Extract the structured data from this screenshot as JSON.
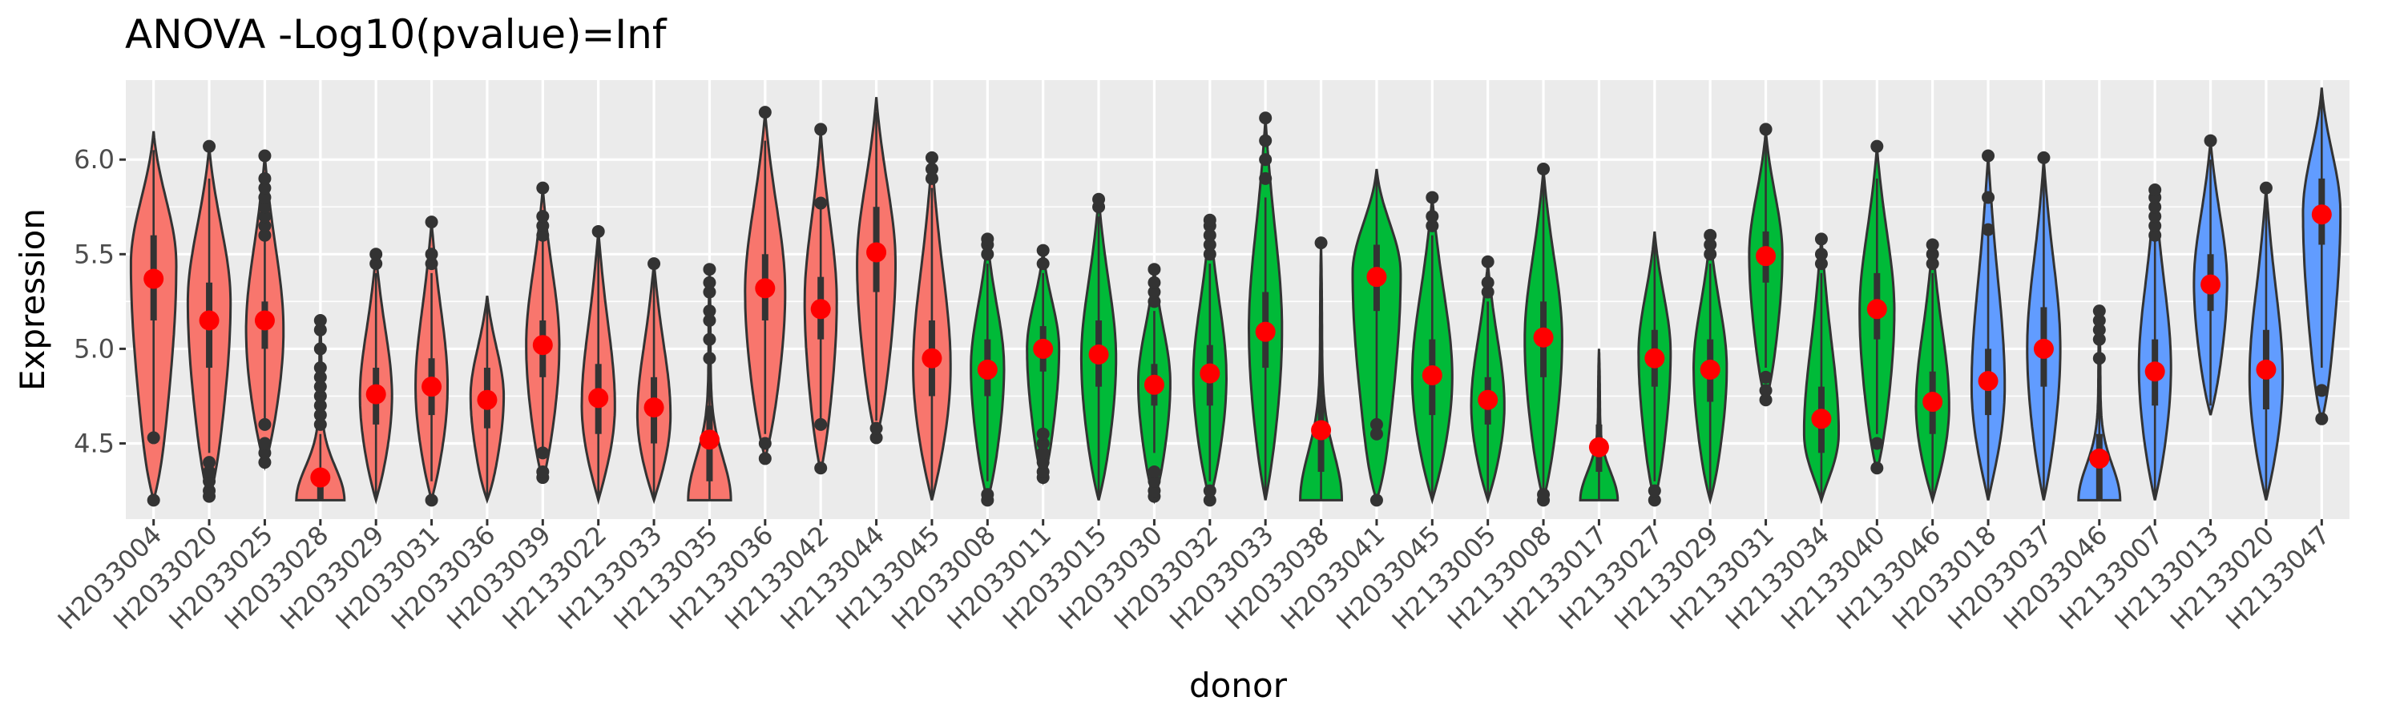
{
  "chart_data": {
    "type": "violin",
    "title": "ANOVA -Log10(pvalue)=Inf",
    "xlabel": "donor",
    "ylabel": "Expression",
    "ylim": [
      4.1,
      6.42
    ],
    "yticks": [
      "4.5",
      "5.0",
      "5.5",
      "6.0"
    ],
    "ytick_values": [
      4.5,
      5.0,
      5.5,
      6.0
    ],
    "grid": true,
    "legend": "none",
    "group_colors": {
      "a": "#F8766D",
      "b": "#00BA38",
      "c": "#619CFF"
    },
    "mean_color": "#FF0000",
    "categories": [
      "H2033004",
      "H2033020",
      "H2033025",
      "H2033028",
      "H2033029",
      "H2033031",
      "H2033036",
      "H2033039",
      "H2133022",
      "H2133033",
      "H2133035",
      "H2133036",
      "H2133042",
      "H2133044",
      "H2133045",
      "H2033008",
      "H2033011",
      "H2033015",
      "H2033030",
      "H2033032",
      "H2033033",
      "H2033038",
      "H2033041",
      "H2033045",
      "H2133005",
      "H2133008",
      "H2133017",
      "H2133027",
      "H2133029",
      "H2133031",
      "H2133034",
      "H2133040",
      "H2133046",
      "H2033018",
      "H2033037",
      "H2033046",
      "H2133007",
      "H2133013",
      "H2133020",
      "H2133047"
    ],
    "violins": [
      {
        "donor": "H2033004",
        "group": "a",
        "min": 4.2,
        "max": 6.15,
        "mean": 5.37,
        "mode": 5.45,
        "width": 0.85,
        "q1": 5.15,
        "med": 5.4,
        "q3": 5.6,
        "wlo": 4.55,
        "whi": 6.05,
        "outliers": [
          4.2,
          4.53
        ]
      },
      {
        "donor": "H2033020",
        "group": "a",
        "min": 4.2,
        "max": 6.07,
        "mean": 5.15,
        "mode": 5.25,
        "width": 0.8,
        "q1": 4.9,
        "med": 5.15,
        "q3": 5.35,
        "wlo": 4.45,
        "whi": 5.9,
        "outliers": [
          4.22,
          4.25,
          4.3,
          4.35,
          4.4,
          6.07
        ]
      },
      {
        "donor": "H2033025",
        "group": "a",
        "min": 4.38,
        "max": 6.02,
        "mean": 5.15,
        "mode": 5.1,
        "width": 0.7,
        "q1": 5.0,
        "med": 5.15,
        "q3": 5.25,
        "wlo": 4.62,
        "whi": 5.6,
        "outliers": [
          4.4,
          4.45,
          4.5,
          4.6,
          5.6,
          5.65,
          5.7,
          5.75,
          5.8,
          5.85,
          5.9,
          6.02
        ]
      },
      {
        "donor": "H2033028",
        "group": "a",
        "min": 4.2,
        "max": 5.15,
        "mean": 4.32,
        "mode": 4.22,
        "width": 0.9,
        "shape": "floor",
        "q1": 4.2,
        "med": 4.22,
        "q3": 4.33,
        "wlo": 4.2,
        "whi": 4.55,
        "outliers": [
          4.6,
          4.65,
          4.7,
          4.75,
          4.8,
          4.85,
          4.9,
          5.0,
          5.1,
          5.15
        ]
      },
      {
        "donor": "H2033029",
        "group": "a",
        "min": 4.2,
        "max": 5.5,
        "mean": 4.76,
        "mode": 4.75,
        "width": 0.6,
        "q1": 4.6,
        "med": 4.75,
        "q3": 4.9,
        "wlo": 4.2,
        "whi": 5.4,
        "outliers": [
          5.45,
          5.5
        ]
      },
      {
        "donor": "H2033031",
        "group": "a",
        "min": 4.2,
        "max": 5.67,
        "mean": 4.8,
        "mode": 4.8,
        "width": 0.6,
        "q1": 4.65,
        "med": 4.8,
        "q3": 4.95,
        "wlo": 4.3,
        "whi": 5.4,
        "outliers": [
          4.2,
          5.45,
          5.5,
          5.67
        ]
      },
      {
        "donor": "H2033036",
        "group": "a",
        "min": 4.2,
        "max": 5.28,
        "mean": 4.73,
        "mode": 4.75,
        "width": 0.62,
        "q1": 4.58,
        "med": 4.73,
        "q3": 4.9,
        "wlo": 4.2,
        "whi": 5.28,
        "outliers": []
      },
      {
        "donor": "H2033039",
        "group": "a",
        "min": 4.3,
        "max": 5.85,
        "mean": 5.02,
        "mode": 5.02,
        "width": 0.62,
        "q1": 4.85,
        "med": 5.0,
        "q3": 5.15,
        "wlo": 4.45,
        "whi": 5.6,
        "outliers": [
          4.32,
          4.35,
          4.45,
          5.6,
          5.65,
          5.7,
          5.85
        ]
      },
      {
        "donor": "H2133022",
        "group": "a",
        "min": 4.2,
        "max": 5.62,
        "mean": 4.74,
        "mode": 4.7,
        "width": 0.62,
        "q1": 4.55,
        "med": 4.72,
        "q3": 4.92,
        "wlo": 4.2,
        "whi": 5.55,
        "outliers": [
          5.62
        ]
      },
      {
        "donor": "H2133033",
        "group": "a",
        "min": 4.2,
        "max": 5.45,
        "mean": 4.69,
        "mode": 4.65,
        "width": 0.62,
        "q1": 4.5,
        "med": 4.68,
        "q3": 4.85,
        "wlo": 4.2,
        "whi": 5.42,
        "outliers": [
          5.45
        ]
      },
      {
        "donor": "H2133035",
        "group": "a",
        "min": 4.2,
        "max": 5.42,
        "mean": 4.52,
        "mode": 4.45,
        "width": 0.8,
        "shape": "floor",
        "q1": 4.3,
        "med": 4.5,
        "q3": 4.7,
        "wlo": 4.2,
        "whi": 5.15,
        "outliers": [
          4.95,
          5.05,
          5.15,
          5.2,
          5.3,
          5.35,
          5.42
        ]
      },
      {
        "donor": "H2133036",
        "group": "a",
        "min": 4.42,
        "max": 6.25,
        "mean": 5.32,
        "mode": 5.3,
        "width": 0.75,
        "q1": 5.15,
        "med": 5.3,
        "q3": 5.5,
        "wlo": 4.55,
        "whi": 6.1,
        "outliers": [
          4.42,
          4.5,
          6.25
        ]
      },
      {
        "donor": "H2133042",
        "group": "a",
        "min": 4.35,
        "max": 6.15,
        "mean": 5.21,
        "mode": 5.25,
        "width": 0.6,
        "q1": 5.05,
        "med": 5.22,
        "q3": 5.38,
        "wlo": 4.6,
        "whi": 5.8,
        "outliers": [
          4.37,
          4.6,
          5.77,
          6.16
        ]
      },
      {
        "donor": "H2133044",
        "group": "a",
        "min": 4.52,
        "max": 6.33,
        "mean": 5.51,
        "mode": 5.45,
        "width": 0.72,
        "q1": 5.3,
        "med": 5.5,
        "q3": 5.75,
        "wlo": 4.62,
        "whi": 6.25,
        "outliers": [
          4.53,
          4.58
        ]
      },
      {
        "donor": "H2133045",
        "group": "a",
        "min": 4.2,
        "max": 6.0,
        "mean": 4.95,
        "mode": 4.9,
        "width": 0.7,
        "q1": 4.75,
        "med": 4.95,
        "q3": 5.15,
        "wlo": 4.2,
        "whi": 5.85,
        "outliers": [
          5.9,
          5.95,
          6.01
        ]
      },
      {
        "donor": "H2033008",
        "group": "b",
        "min": 4.2,
        "max": 5.58,
        "mean": 4.89,
        "mode": 4.9,
        "width": 0.62,
        "q1": 4.75,
        "med": 4.9,
        "q3": 5.05,
        "wlo": 4.3,
        "whi": 5.45,
        "outliers": [
          4.2,
          4.23,
          5.5,
          5.55,
          5.58
        ]
      },
      {
        "donor": "H2033011",
        "group": "b",
        "min": 4.3,
        "max": 5.52,
        "mean": 5.0,
        "mode": 5.0,
        "width": 0.6,
        "q1": 4.88,
        "med": 5.0,
        "q3": 5.12,
        "wlo": 4.58,
        "whi": 5.4,
        "outliers": [
          4.32,
          4.35,
          4.4,
          4.45,
          4.5,
          4.55,
          5.45,
          5.52
        ]
      },
      {
        "donor": "H2033015",
        "group": "b",
        "min": 4.2,
        "max": 5.8,
        "mean": 4.97,
        "mode": 4.95,
        "width": 0.65,
        "q1": 4.8,
        "med": 4.97,
        "q3": 5.15,
        "wlo": 4.2,
        "whi": 5.7,
        "outliers": [
          5.75,
          5.79
        ]
      },
      {
        "donor": "H2033030",
        "group": "b",
        "min": 4.2,
        "max": 5.42,
        "mean": 4.81,
        "mode": 4.82,
        "width": 0.6,
        "q1": 4.7,
        "med": 4.82,
        "q3": 4.92,
        "wlo": 4.45,
        "whi": 5.2,
        "outliers": [
          4.22,
          4.25,
          4.3,
          4.35,
          5.25,
          5.3,
          5.35,
          5.42
        ]
      },
      {
        "donor": "H2033032",
        "group": "b",
        "min": 4.2,
        "max": 5.68,
        "mean": 4.87,
        "mode": 4.85,
        "width": 0.62,
        "q1": 4.7,
        "med": 4.87,
        "q3": 5.02,
        "wlo": 4.3,
        "whi": 5.45,
        "outliers": [
          4.2,
          4.25,
          5.5,
          5.55,
          5.6,
          5.65,
          5.68
        ]
      },
      {
        "donor": "H2033033",
        "group": "b",
        "min": 4.2,
        "max": 6.22,
        "mean": 5.09,
        "mode": 5.1,
        "width": 0.62,
        "q1": 4.9,
        "med": 5.1,
        "q3": 5.3,
        "wlo": 4.2,
        "whi": 5.8,
        "outliers": [
          5.9,
          6.0,
          6.1,
          6.22
        ]
      },
      {
        "donor": "H2033038",
        "group": "b",
        "min": 4.2,
        "max": 5.55,
        "mean": 4.57,
        "mode": 4.45,
        "width": 0.78,
        "shape": "floor",
        "q1": 4.35,
        "med": 4.55,
        "q3": 4.78,
        "wlo": 4.2,
        "whi": 5.5,
        "outliers": [
          5.56
        ]
      },
      {
        "donor": "H2033041",
        "group": "b",
        "min": 4.2,
        "max": 5.95,
        "mean": 5.38,
        "mode": 5.4,
        "width": 0.9,
        "q1": 5.2,
        "med": 5.38,
        "q3": 5.55,
        "wlo": 4.62,
        "whi": 5.9,
        "outliers": [
          4.2,
          4.55,
          4.6
        ]
      },
      {
        "donor": "H2033045",
        "group": "b",
        "min": 4.2,
        "max": 5.8,
        "mean": 4.86,
        "mode": 4.85,
        "width": 0.75,
        "q1": 4.65,
        "med": 4.85,
        "q3": 5.05,
        "wlo": 4.2,
        "whi": 5.6,
        "outliers": [
          5.65,
          5.7,
          5.8
        ]
      },
      {
        "donor": "H2133005",
        "group": "b",
        "min": 4.2,
        "max": 5.45,
        "mean": 4.73,
        "mode": 4.7,
        "width": 0.62,
        "q1": 4.6,
        "med": 4.72,
        "q3": 4.85,
        "wlo": 4.2,
        "whi": 5.25,
        "outliers": [
          5.3,
          5.35,
          5.46
        ]
      },
      {
        "donor": "H2133008",
        "group": "b",
        "min": 4.2,
        "max": 5.95,
        "mean": 5.06,
        "mode": 5.05,
        "width": 0.7,
        "q1": 4.85,
        "med": 5.05,
        "q3": 5.25,
        "wlo": 4.25,
        "whi": 5.9,
        "outliers": [
          4.2,
          4.23,
          5.95
        ]
      },
      {
        "donor": "H2133017",
        "group": "b",
        "min": 4.2,
        "max": 5.0,
        "mean": 4.48,
        "mode": 4.42,
        "width": 0.7,
        "shape": "floor",
        "q1": 4.35,
        "med": 4.48,
        "q3": 4.6,
        "wlo": 4.2,
        "whi": 4.95,
        "outliers": []
      },
      {
        "donor": "H2133027",
        "group": "b",
        "min": 4.2,
        "max": 5.62,
        "mean": 4.95,
        "mode": 4.98,
        "width": 0.6,
        "q1": 4.8,
        "med": 4.95,
        "q3": 5.1,
        "wlo": 4.3,
        "whi": 5.55,
        "outliers": [
          4.2,
          4.25
        ]
      },
      {
        "donor": "H2133029",
        "group": "b",
        "min": 4.2,
        "max": 5.6,
        "mean": 4.89,
        "mode": 4.9,
        "width": 0.62,
        "q1": 4.72,
        "med": 4.9,
        "q3": 5.05,
        "wlo": 4.2,
        "whi": 5.45,
        "outliers": [
          5.5,
          5.55,
          5.6
        ]
      },
      {
        "donor": "H2133031",
        "group": "b",
        "min": 4.72,
        "max": 6.15,
        "mean": 5.49,
        "mode": 5.5,
        "width": 0.62,
        "q1": 5.35,
        "med": 5.5,
        "q3": 5.62,
        "wlo": 4.9,
        "whi": 6.1,
        "outliers": [
          4.73,
          4.78,
          4.85,
          6.16
        ]
      },
      {
        "donor": "H2133034",
        "group": "b",
        "min": 4.2,
        "max": 5.58,
        "mean": 4.63,
        "mode": 4.55,
        "width": 0.65,
        "q1": 4.45,
        "med": 4.62,
        "q3": 4.8,
        "wlo": 4.2,
        "whi": 5.4,
        "outliers": [
          5.45,
          5.5,
          5.58
        ]
      },
      {
        "donor": "H2133040",
        "group": "b",
        "min": 4.35,
        "max": 6.07,
        "mean": 5.21,
        "mode": 5.2,
        "width": 0.65,
        "q1": 5.05,
        "med": 5.2,
        "q3": 5.4,
        "wlo": 4.55,
        "whi": 5.9,
        "outliers": [
          4.37,
          4.5,
          6.07
        ]
      },
      {
        "donor": "H2133046",
        "group": "b",
        "min": 4.2,
        "max": 5.55,
        "mean": 4.72,
        "mode": 4.7,
        "width": 0.62,
        "q1": 4.55,
        "med": 4.7,
        "q3": 4.88,
        "wlo": 4.2,
        "whi": 5.4,
        "outliers": [
          5.45,
          5.5,
          5.55
        ]
      },
      {
        "donor": "H2033018",
        "group": "c",
        "min": 4.2,
        "max": 6.02,
        "mean": 4.83,
        "mode": 4.8,
        "width": 0.62,
        "q1": 4.65,
        "med": 4.82,
        "q3": 5.0,
        "wlo": 4.2,
        "whi": 5.6,
        "outliers": [
          5.63,
          5.8,
          6.02
        ]
      },
      {
        "donor": "H2033037",
        "group": "c",
        "min": 4.2,
        "max": 6.0,
        "mean": 5.0,
        "mode": 5.0,
        "width": 0.62,
        "q1": 4.8,
        "med": 5.0,
        "q3": 5.22,
        "wlo": 4.2,
        "whi": 6.0,
        "outliers": [
          6.01
        ]
      },
      {
        "donor": "H2033046",
        "group": "c",
        "min": 4.2,
        "max": 5.2,
        "mean": 4.42,
        "mode": 4.25,
        "width": 0.78,
        "shape": "floor",
        "q1": 4.2,
        "med": 4.38,
        "q3": 4.55,
        "wlo": 4.2,
        "whi": 4.85,
        "outliers": [
          4.95,
          5.05,
          5.1,
          5.15,
          5.2
        ]
      },
      {
        "donor": "H2133007",
        "group": "c",
        "min": 4.2,
        "max": 5.85,
        "mean": 4.88,
        "mode": 4.9,
        "width": 0.6,
        "q1": 4.7,
        "med": 4.88,
        "q3": 5.05,
        "wlo": 4.2,
        "whi": 5.6,
        "outliers": [
          5.6,
          5.65,
          5.7,
          5.75,
          5.8,
          5.84
        ]
      },
      {
        "donor": "H2133013",
        "group": "c",
        "min": 4.65,
        "max": 6.1,
        "mean": 5.34,
        "mode": 5.35,
        "width": 0.62,
        "q1": 5.2,
        "med": 5.35,
        "q3": 5.5,
        "wlo": 4.7,
        "whi": 6.0,
        "outliers": [
          6.1
        ]
      },
      {
        "donor": "H2133020",
        "group": "c",
        "min": 4.2,
        "max": 5.85,
        "mean": 4.89,
        "mode": 4.85,
        "width": 0.62,
        "q1": 4.68,
        "med": 4.88,
        "q3": 5.1,
        "wlo": 4.2,
        "whi": 5.8,
        "outliers": [
          5.85
        ]
      },
      {
        "donor": "H2133047",
        "group": "c",
        "min": 4.62,
        "max": 6.38,
        "mean": 5.71,
        "mode": 5.72,
        "width": 0.7,
        "q1": 5.55,
        "med": 5.72,
        "q3": 5.9,
        "wlo": 4.9,
        "whi": 6.38,
        "outliers": [
          4.63,
          4.78
        ]
      }
    ]
  }
}
